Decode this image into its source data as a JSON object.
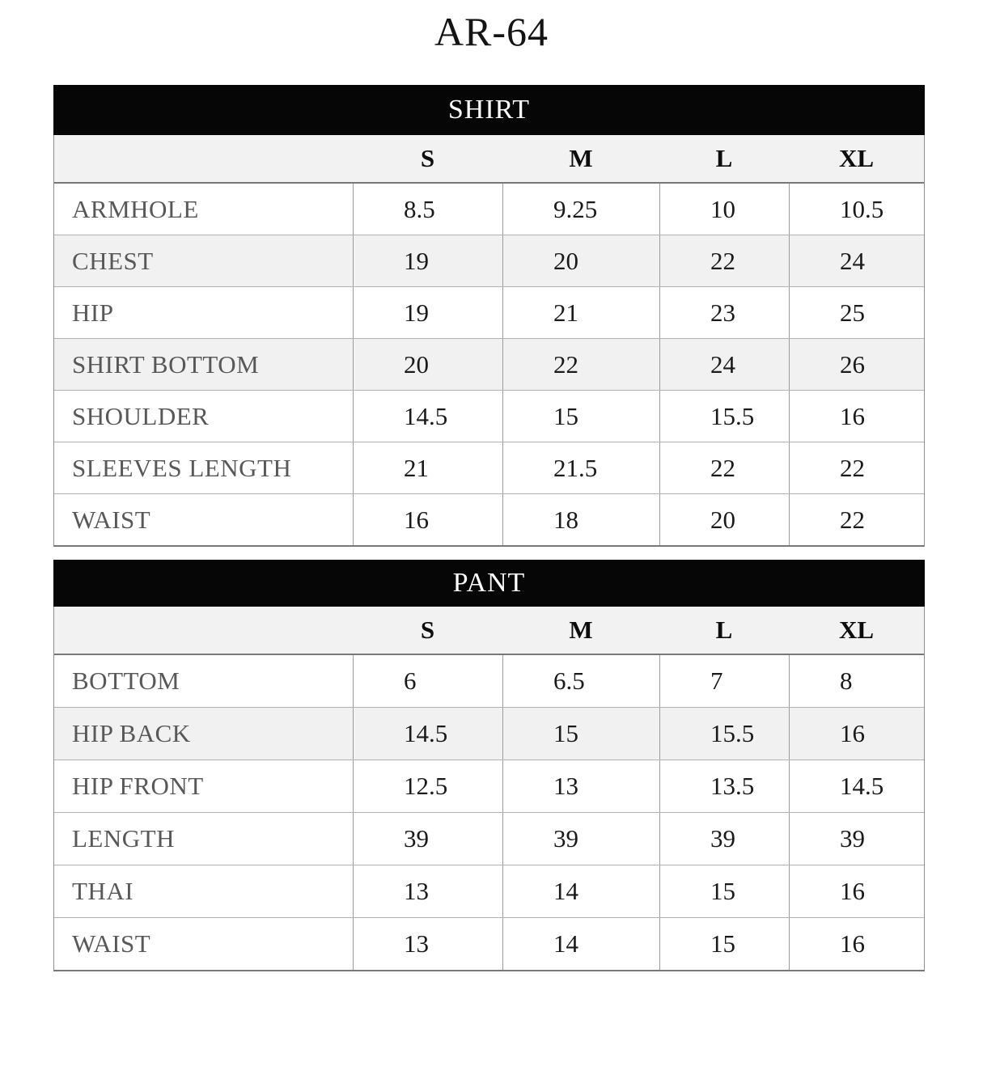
{
  "page": {
    "title": "AR-64"
  },
  "colors": {
    "bar_bg": "#060606",
    "bar_text": "#ffffff",
    "header_row_bg": "#f2f2f2",
    "shaded_row_bg": "#f1f1f2",
    "label_text": "#58585a",
    "value_text": "#1a1a1a"
  },
  "tables": [
    {
      "title": "SHIRT",
      "size_headers": [
        "S",
        "M",
        "L",
        "XL"
      ],
      "rows": [
        {
          "label": "ARMHOLE",
          "values": [
            "8.5",
            "9.25",
            "10",
            "10.5"
          ],
          "shaded": false
        },
        {
          "label": "CHEST",
          "values": [
            "19",
            "20",
            "22",
            "24"
          ],
          "shaded": true
        },
        {
          "label": "HIP",
          "values": [
            "19",
            "21",
            "23",
            "25"
          ],
          "shaded": false
        },
        {
          "label": "SHIRT BOTTOM",
          "values": [
            "20",
            "22",
            "24",
            "26"
          ],
          "shaded": true
        },
        {
          "label": "SHOULDER",
          "values": [
            "14.5",
            "15",
            "15.5",
            "16"
          ],
          "shaded": false
        },
        {
          "label": "SLEEVES LENGTH",
          "values": [
            "21",
            "21.5",
            "22",
            "22"
          ],
          "shaded": false
        },
        {
          "label": "WAIST",
          "values": [
            "16",
            "18",
            "20",
            "22"
          ],
          "shaded": false
        }
      ]
    },
    {
      "title": "PANT",
      "size_headers": [
        "S",
        "M",
        "L",
        "XL"
      ],
      "rows": [
        {
          "label": "BOTTOM",
          "values": [
            "6",
            "6.5",
            "7",
            "8"
          ],
          "shaded": false
        },
        {
          "label": "HIP BACK",
          "values": [
            "14.5",
            "15",
            "15.5",
            "16"
          ],
          "shaded": true
        },
        {
          "label": "HIP FRONT",
          "values": [
            "12.5",
            "13",
            "13.5",
            "14.5"
          ],
          "shaded": false
        },
        {
          "label": "LENGTH",
          "values": [
            "39",
            "39",
            "39",
            "39"
          ],
          "shaded": false
        },
        {
          "label": "THAI",
          "values": [
            "13",
            "14",
            "15",
            "16"
          ],
          "shaded": false
        },
        {
          "label": "WAIST",
          "values": [
            "13",
            "14",
            "15",
            "16"
          ],
          "shaded": false
        }
      ]
    }
  ]
}
